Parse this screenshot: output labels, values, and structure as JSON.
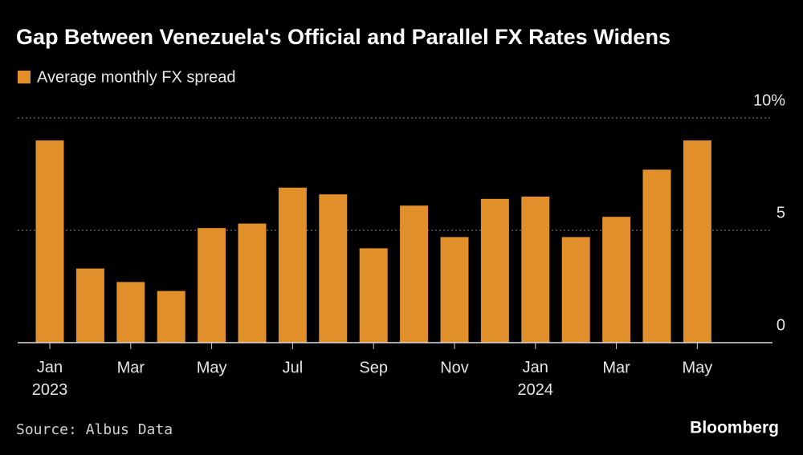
{
  "chart_data": {
    "type": "bar",
    "title": "Gap Between Venezuela's Official and Parallel FX Rates Widens",
    "categories": [
      "Jan 2023",
      null,
      "Mar",
      null,
      "May",
      null,
      "Jul",
      null,
      "Sep",
      null,
      "Nov",
      null,
      "Jan 2024",
      null,
      "Mar",
      null,
      "May"
    ],
    "series": [
      {
        "name": "Average monthly FX spread",
        "color": "#e08f2a",
        "values": [
          9.0,
          3.3,
          2.7,
          2.3,
          5.1,
          5.3,
          6.9,
          6.6,
          4.2,
          6.1,
          4.7,
          6.4,
          6.5,
          4.7,
          5.6,
          7.7,
          9.0
        ]
      }
    ],
    "ylim": [
      0,
      10
    ],
    "yticks": [
      0,
      5,
      {
        "value": 10,
        "label": "10%"
      }
    ],
    "grid": true,
    "source": "Source: Albus Data",
    "brand": "Bloomberg"
  }
}
